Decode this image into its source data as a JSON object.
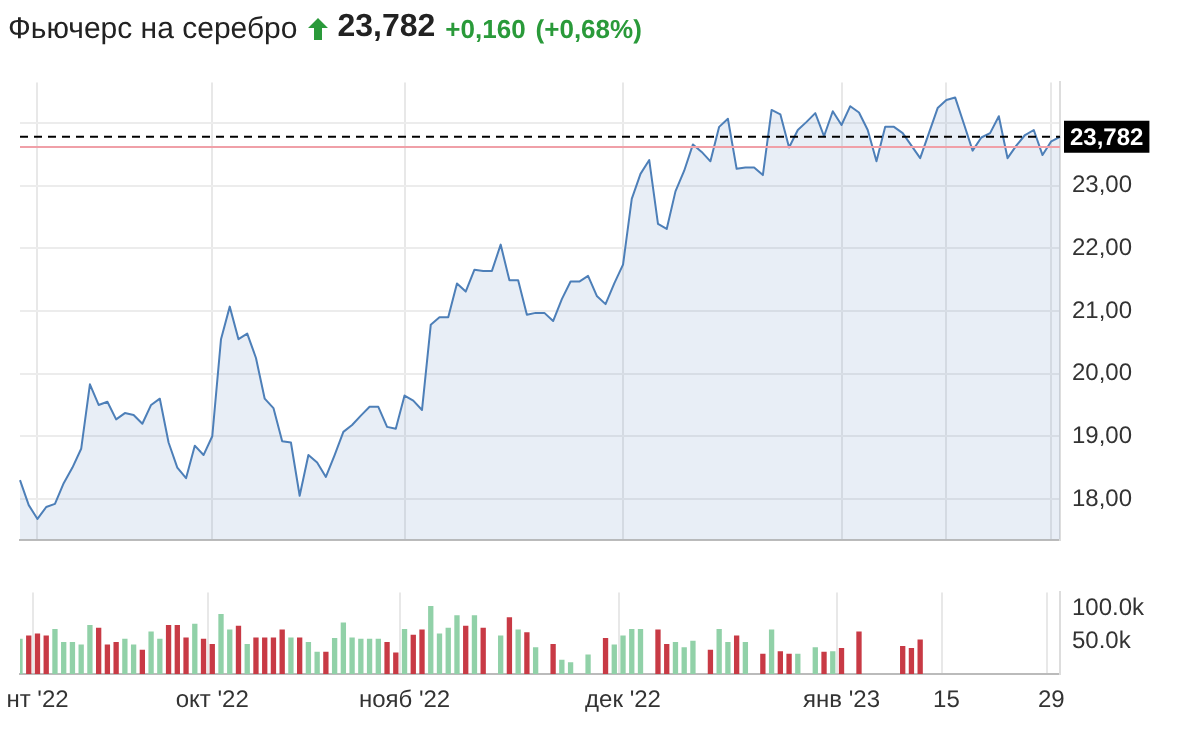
{
  "chart_data": [
    {
      "type": "area",
      "title": "Фьючерс на серебро",
      "annotations": [
        "23,782",
        "+0,160",
        "(+0,68%)"
      ],
      "categories": [
        null,
        null,
        null,
        null,
        null,
        null,
        null,
        null,
        null,
        null,
        null,
        null,
        null,
        null,
        null,
        null,
        null,
        null,
        null,
        null,
        null,
        null,
        null,
        null,
        null,
        null,
        null,
        null,
        null,
        null,
        null,
        null,
        null,
        null,
        null,
        null,
        null,
        null,
        null,
        null,
        null,
        null,
        null,
        null,
        null,
        null,
        null,
        null,
        null,
        null,
        null,
        null,
        null,
        null,
        null,
        null,
        null,
        null,
        null,
        null,
        null,
        null,
        null,
        null,
        null,
        null,
        null,
        null,
        null,
        null,
        null,
        null,
        null,
        null,
        null,
        null,
        null,
        null,
        null,
        null,
        null,
        null,
        null,
        null,
        null,
        null,
        null,
        null,
        null,
        null,
        null,
        null,
        null,
        null,
        null,
        null,
        null,
        null,
        null,
        null,
        null,
        null,
        null,
        null,
        null,
        null,
        null,
        null,
        null,
        null,
        null,
        null,
        null,
        null,
        null,
        null,
        null,
        null,
        null,
        null
      ],
      "series": [
        {
          "color": "#4d7fb8",
          "values": [
            18.3,
            17.9,
            17.68,
            17.87,
            17.92,
            18.25,
            18.5,
            18.8,
            19.83,
            19.5,
            19.55,
            19.27,
            19.37,
            19.34,
            19.2,
            19.5,
            19.6,
            18.9,
            18.5,
            18.33,
            18.85,
            18.7,
            19.0,
            20.55,
            21.07,
            20.55,
            20.64,
            20.25,
            19.6,
            19.45,
            18.92,
            18.9,
            18.05,
            18.7,
            18.58,
            18.35,
            18.7,
            19.07,
            19.18,
            19.33,
            19.47,
            19.47,
            19.15,
            19.12,
            19.65,
            19.57,
            19.42,
            20.78,
            20.9,
            20.9,
            21.44,
            21.31,
            21.66,
            21.64,
            21.64,
            22.06,
            21.49,
            21.49,
            20.94,
            20.97,
            20.97,
            20.84,
            21.19,
            21.47,
            21.47,
            21.56,
            21.24,
            21.11,
            21.44,
            21.74,
            22.79,
            23.19,
            23.41,
            22.39,
            22.31,
            22.91,
            23.24,
            23.66,
            23.54,
            23.39,
            23.94,
            24.07,
            23.27,
            23.29,
            23.29,
            23.17,
            24.21,
            24.14,
            23.61,
            23.89,
            24.02,
            24.16,
            23.79,
            24.19,
            23.97,
            24.27,
            24.17,
            23.89,
            23.39,
            23.94,
            23.94,
            23.84,
            23.64,
            23.44,
            23.84,
            24.24,
            24.37,
            24.41,
            23.99,
            23.56,
            23.77,
            23.84,
            24.11,
            23.44,
            23.64,
            23.81,
            23.89,
            23.49,
            23.71,
            23.78
          ]
        }
      ],
      "ylim": [
        17.35,
        24.65
      ],
      "yticks": [
        {
          "value": 18,
          "label": "18,00"
        },
        {
          "value": 19,
          "label": "19,00"
        },
        {
          "value": 20,
          "label": "20,00"
        },
        {
          "value": 21,
          "label": "21,00"
        },
        {
          "value": 22,
          "label": "22,00"
        },
        {
          "value": 23,
          "label": "23,00"
        },
        {
          "value": 24,
          "label": null
        }
      ],
      "grid": true,
      "tick_labels": "y",
      "ref_lines": [
        {
          "axis": "y",
          "value": 23.62,
          "color": "#f0a0a8",
          "line_style": "solid"
        },
        {
          "axis": "y",
          "value": 23.782,
          "label": "23,782",
          "color": "#000000",
          "line_style": "dashed"
        }
      ]
    },
    {
      "type": "bar",
      "categories": [
        null,
        null,
        "нт '22",
        null,
        null,
        null,
        null,
        null,
        null,
        null,
        null,
        null,
        null,
        null,
        null,
        null,
        null,
        null,
        null,
        null,
        null,
        null,
        "окт '22",
        null,
        null,
        null,
        null,
        null,
        null,
        null,
        null,
        null,
        null,
        null,
        null,
        null,
        null,
        null,
        null,
        null,
        null,
        null,
        null,
        null,
        "нояб '22",
        null,
        null,
        null,
        null,
        null,
        null,
        null,
        null,
        null,
        null,
        null,
        null,
        null,
        null,
        null,
        null,
        null,
        null,
        null,
        null,
        null,
        null,
        null,
        null,
        "дек '22",
        null,
        null,
        null,
        null,
        null,
        null,
        null,
        null,
        null,
        null,
        null,
        null,
        null,
        null,
        null,
        null,
        null,
        null,
        null,
        null,
        null,
        null,
        null,
        null,
        "янв '23",
        null,
        null,
        null,
        null,
        null,
        null,
        null,
        null,
        null,
        null,
        null,
        "15",
        null,
        null,
        null,
        null,
        null,
        null,
        null,
        null,
        null,
        null,
        null,
        "29",
        null
      ],
      "values": [
        53000,
        58000,
        61000,
        58000,
        68000,
        48000,
        48000,
        44000,
        74000,
        70000,
        44000,
        48000,
        53000,
        44000,
        36000,
        64000,
        53000,
        74000,
        74000,
        55000,
        76000,
        53000,
        45000,
        91000,
        67000,
        73000,
        45000,
        55000,
        55000,
        55000,
        67000,
        55000,
        55000,
        48000,
        33000,
        33000,
        54000,
        78000,
        55000,
        53000,
        53000,
        53000,
        48000,
        32000,
        68000,
        59000,
        67000,
        103000,
        61000,
        70000,
        89000,
        73000,
        89000,
        70000,
        null,
        58000,
        86000,
        67000,
        63000,
        40000,
        null,
        45000,
        21000,
        17000,
        null,
        29000,
        null,
        54000,
        44000,
        58000,
        68000,
        68000,
        null,
        67000,
        45000,
        48000,
        40000,
        50000,
        null,
        36000,
        68000,
        48000,
        58000,
        48000,
        null,
        30000,
        67000,
        34000,
        30000,
        30000,
        null,
        40000,
        33000,
        34000,
        39000,
        null,
        64000,
        null,
        null,
        null,
        null,
        42000,
        39000,
        52000,
        null,
        null,
        null,
        null,
        null,
        null,
        null,
        null,
        null,
        null,
        null,
        null,
        null,
        null,
        null,
        null
      ],
      "colors": [
        "#91d1a8",
        "#c83a45",
        "#c83a45",
        "#c83a45",
        "#91d1a8",
        "#91d1a8",
        "#91d1a8",
        "#91d1a8",
        "#91d1a8",
        "#c83a45",
        "#c83a45",
        "#c83a45",
        "#91d1a8",
        "#91d1a8",
        "#c83a45",
        "#91d1a8",
        "#91d1a8",
        "#c83a45",
        "#c83a45",
        "#c83a45",
        "#91d1a8",
        "#c83a45",
        "#c83a45",
        "#91d1a8",
        "#91d1a8",
        "#c83a45",
        "#91d1a8",
        "#c83a45",
        "#c83a45",
        "#c83a45",
        "#c83a45",
        "#91d1a8",
        "#c83a45",
        "#91d1a8",
        "#91d1a8",
        "#c83a45",
        "#91d1a8",
        "#91d1a8",
        "#91d1a8",
        "#91d1a8",
        "#91d1a8",
        "#91d1a8",
        "#c83a45",
        "#c83a45",
        "#91d1a8",
        "#c83a45",
        "#c83a45",
        "#91d1a8",
        "#91d1a8",
        "#91d1a8",
        "#91d1a8",
        "#c83a45",
        "#91d1a8",
        "#c83a45",
        "#91d1a8",
        "#91d1a8",
        "#c83a45",
        "#91d1a8",
        "#c83a45",
        "#91d1a8",
        "#91d1a8",
        "#c83a45",
        "#91d1a8",
        "#91d1a8",
        "#91d1a8",
        "#91d1a8",
        "#91d1a8",
        "#c83a45",
        "#91d1a8",
        "#91d1a8",
        "#91d1a8",
        "#91d1a8",
        "#91d1a8",
        "#c83a45",
        "#c83a45",
        "#91d1a8",
        "#91d1a8",
        "#91d1a8",
        "#91d1a8",
        "#c83a45",
        "#91d1a8",
        "#91d1a8",
        "#c83a45",
        "#91d1a8",
        "#91d1a8",
        "#c83a45",
        "#91d1a8",
        "#c83a45",
        "#c83a45",
        "#91d1a8",
        "#91d1a8",
        "#91d1a8",
        "#c83a45",
        "#91d1a8",
        "#c83a45",
        "#91d1a8",
        "#c83a45",
        "#91d1a8",
        "#91d1a8",
        "#91d1a8",
        "#91d1a8",
        "#c83a45",
        "#c83a45",
        "#c83a45",
        "#91d1a8",
        "#91d1a8",
        "#91d1a8",
        "#91d1a8",
        "#91d1a8",
        "#91d1a8",
        "#91d1a8",
        "#91d1a8",
        "#91d1a8",
        "#91d1a8",
        "#91d1a8",
        "#91d1a8",
        "#91d1a8",
        "#91d1a8",
        "#91d1a8",
        "#91d1a8"
      ],
      "ylim": [
        0,
        125000
      ],
      "yticks": [
        {
          "value": 50000,
          "label": "50.0k"
        },
        {
          "value": 100000,
          "label": "100.0k"
        }
      ],
      "grid": "x"
    }
  ]
}
